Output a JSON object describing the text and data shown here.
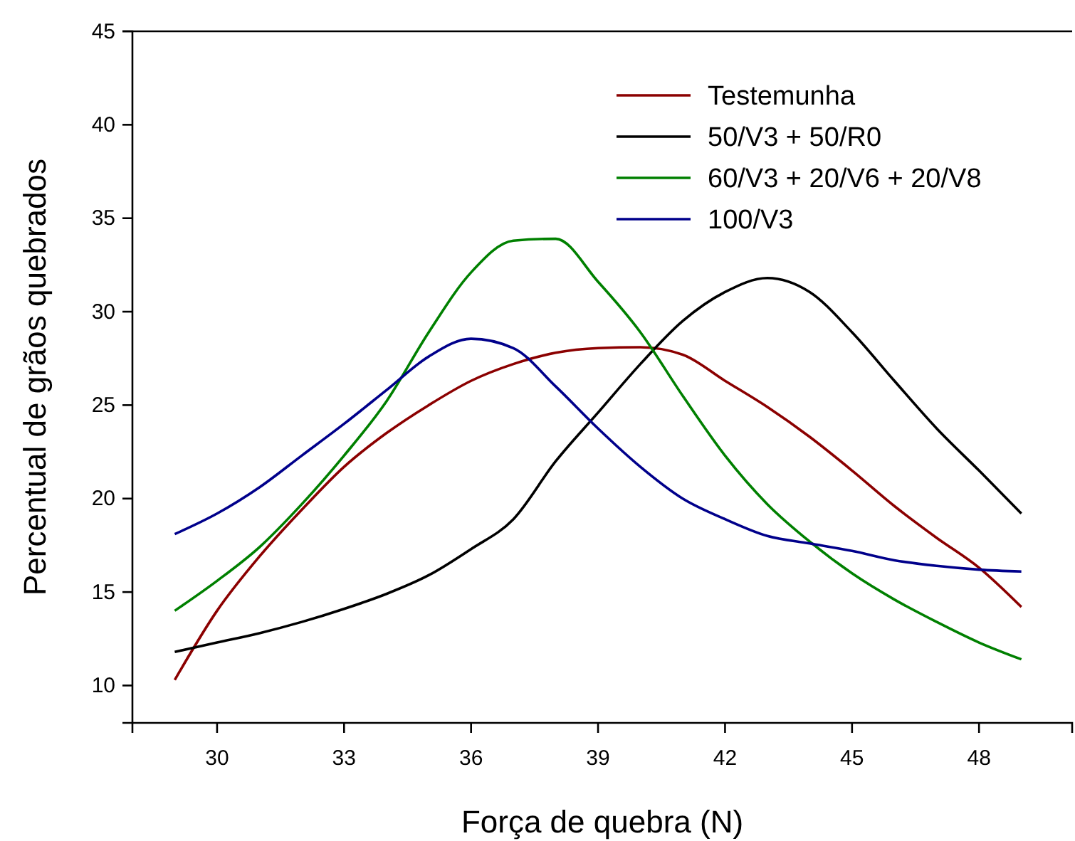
{
  "chart_data": {
    "type": "line",
    "xlabel": "Força de quebra (N)",
    "ylabel": "Percentual de grãos quebrados",
    "x": [
      29,
      30,
      31,
      32,
      33,
      34,
      35,
      36,
      37,
      38,
      39,
      40,
      41,
      42,
      43,
      44,
      45,
      46,
      47,
      48,
      49
    ],
    "xlim": [
      28,
      50.2
    ],
    "xticks": [
      30,
      33,
      36,
      39,
      42,
      45,
      48
    ],
    "ylim": [
      8,
      45
    ],
    "yticks": [
      10,
      15,
      20,
      25,
      30,
      35,
      40,
      45
    ],
    "legend": "top right",
    "grid": false,
    "marker": "none",
    "line_style": "solid",
    "series": [
      {
        "name": "Testemunha",
        "color": "#8b0000",
        "values": [
          10.3,
          14.0,
          16.9,
          19.4,
          21.7,
          23.5,
          25.0,
          26.3,
          27.2,
          27.8,
          28.05,
          28.1,
          27.7,
          26.3,
          24.9,
          23.3,
          21.5,
          19.6,
          17.9,
          16.3,
          14.2
        ]
      },
      {
        "name": "50/V3 + 50/R0",
        "color": "#000000",
        "values": [
          11.8,
          12.3,
          12.8,
          13.4,
          14.1,
          14.9,
          15.9,
          17.3,
          18.9,
          22.0,
          24.6,
          27.2,
          29.5,
          31.05,
          31.8,
          31.05,
          28.9,
          26.3,
          23.75,
          21.5,
          19.2
        ]
      },
      {
        "name": "60/V3 + 20/V6 + 20/V8",
        "color": "#008000",
        "values": [
          14.0,
          15.6,
          17.4,
          19.7,
          22.3,
          25.2,
          28.9,
          32.1,
          33.8,
          33.9,
          31.6,
          28.9,
          25.5,
          22.3,
          19.7,
          17.7,
          16.0,
          14.6,
          13.4,
          12.3,
          11.4
        ]
      },
      {
        "name": "100/V3",
        "color": "#00008b",
        "values": [
          18.1,
          19.2,
          20.6,
          22.3,
          24.0,
          25.8,
          27.6,
          28.55,
          28.05,
          26.0,
          23.75,
          21.7,
          20.0,
          18.9,
          18.0,
          17.6,
          17.2,
          16.7,
          16.4,
          16.2,
          16.1
        ]
      }
    ]
  }
}
